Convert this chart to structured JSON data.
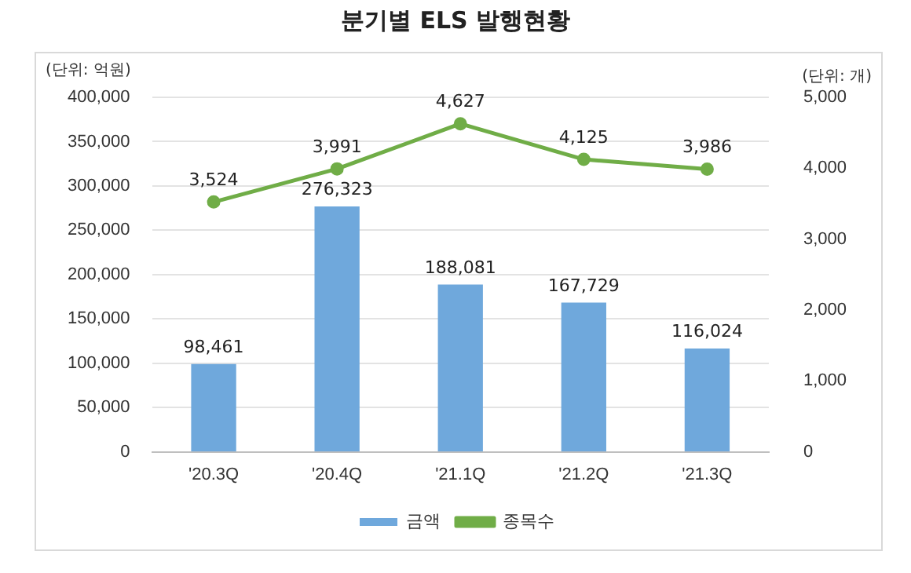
{
  "chart_data": {
    "type": "bar",
    "title": "분기별 ELS 발행현황",
    "ylabel": "(단위: 억원)",
    "y2label": "(단위: 개)",
    "categories": [
      "'20.3Q",
      "'20.4Q",
      "'21.1Q",
      "'21.2Q",
      "'21.3Q"
    ],
    "series": [
      {
        "name": "금액",
        "color": "#6fa8dc",
        "values": [
          98461,
          276323,
          188081,
          167729,
          116024
        ]
      },
      {
        "name": "종목수",
        "type": "line",
        "axis": "y2",
        "color": "#70ad47",
        "marker": "circle",
        "values": [
          3524,
          3991,
          4627,
          4125,
          3986
        ]
      }
    ],
    "ylim": [
      0,
      400000
    ],
    "yticks": [
      {
        "value": 0,
        "label": "0"
      },
      {
        "value": 50000,
        "label": "50,000"
      },
      {
        "value": 100000,
        "label": "100,000"
      },
      {
        "value": 150000,
        "label": "150,000"
      },
      {
        "value": 200000,
        "label": "200,000"
      },
      {
        "value": 250000,
        "label": "250,000"
      },
      {
        "value": 300000,
        "label": "300,000"
      },
      {
        "value": 350000,
        "label": "350,000"
      },
      {
        "value": 400000,
        "label": "400,000"
      }
    ],
    "y2lim": [
      0,
      5000
    ],
    "y2ticks": [
      {
        "value": 0,
        "label": "0"
      },
      {
        "value": 1000,
        "label": "1,000"
      },
      {
        "value": 2000,
        "label": "2,000"
      },
      {
        "value": 3000,
        "label": "3,000"
      },
      {
        "value": 4000,
        "label": "4,000"
      },
      {
        "value": 5000,
        "label": "5,000"
      }
    ],
    "value_labels": [
      [
        "98,461",
        "276,323",
        "188,081",
        "167,729",
        "116,024"
      ],
      [
        "3,524",
        "3,991",
        "4,627",
        "4,125",
        "3,986"
      ]
    ],
    "grid": "y",
    "legend": "bottom"
  }
}
